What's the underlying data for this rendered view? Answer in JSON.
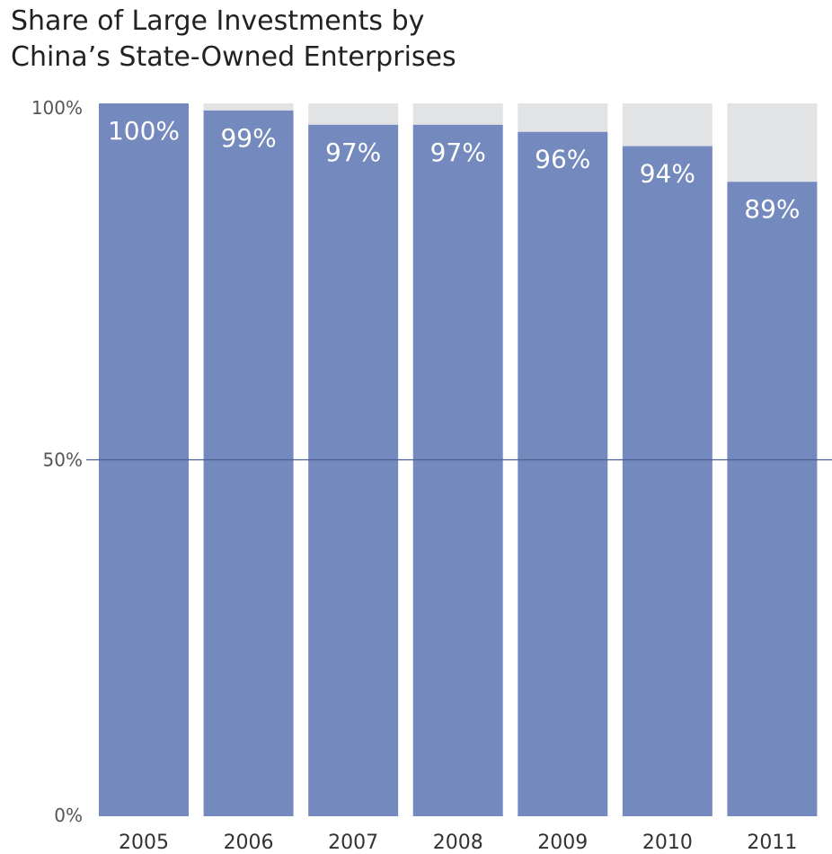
{
  "chart_data": {
    "type": "bar",
    "title_lines": [
      "Share of Large Investments by",
      "China’s State-Owned Enterprises"
    ],
    "categories": [
      "2005",
      "2006",
      "2007",
      "2008",
      "2009",
      "2010",
      "2011"
    ],
    "values": [
      100,
      99,
      97,
      97,
      96,
      94,
      89
    ],
    "value_labels": [
      "100%",
      "99%",
      "97%",
      "97%",
      "96%",
      "94%",
      "89%"
    ],
    "stacked_remainder_to": 100,
    "ylim": [
      0,
      100
    ],
    "yticks": [
      0,
      50,
      100
    ],
    "ytick_labels": [
      "0%",
      "50%",
      "100%"
    ],
    "grid_lines_at": [
      50
    ],
    "legend": "none",
    "colors": {
      "bar": "#7489bd",
      "remainder": "#e2e3e5",
      "gridline": "#4f5f8f",
      "label": "#ffffff"
    }
  }
}
